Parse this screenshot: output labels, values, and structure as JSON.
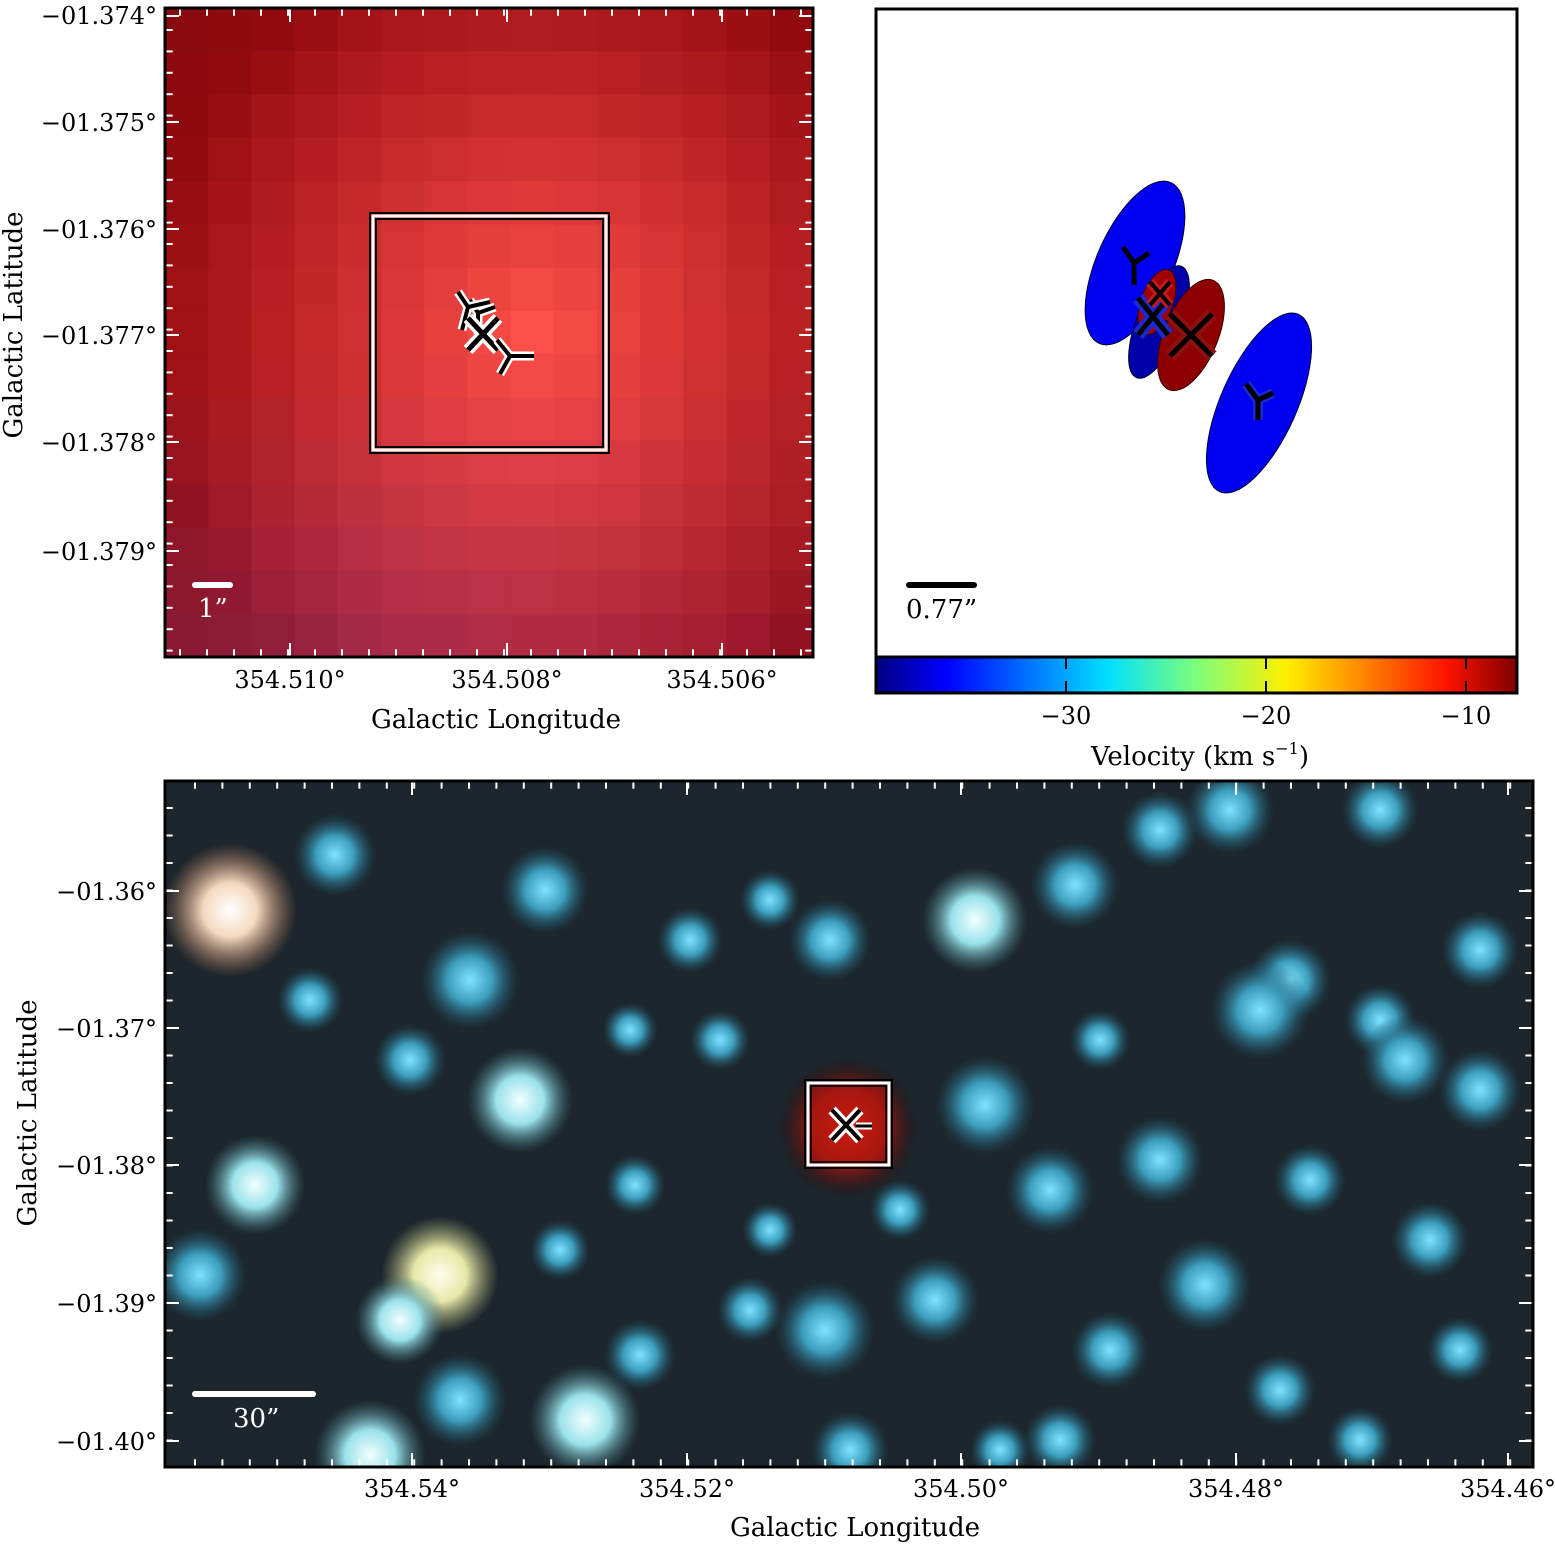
{
  "chart_data": [
    {
      "type": "heatmap",
      "panel": "top-left",
      "xlabel": "Galactic Longitude",
      "ylabel": "Galactic Latitude",
      "xlim": [
        354.5113,
        354.5053
      ],
      "ylim": [
        -1.37998,
        -1.37396
      ],
      "x_ticks": [
        354.51,
        354.508,
        354.506
      ],
      "x_tick_labels": [
        "354.510°",
        "354.508°",
        "354.506°"
      ],
      "y_ticks": [
        -1.374,
        -1.375,
        -1.376,
        -1.377,
        -1.378,
        -1.379
      ],
      "y_tick_labels": [
        "−01.374°",
        "−01.375°",
        "−01.376°",
        "−01.377°",
        "−01.378°",
        "−01.379°"
      ],
      "colormap": "red",
      "inset_box": {
        "l_range": [
          354.5094,
          354.5072
        ],
        "b_range": [
          -1.37588,
          -1.37803
        ]
      },
      "markers": [
        {
          "symbol": "tri_down",
          "l": 354.50805,
          "b": -1.37723
        },
        {
          "symbol": "x",
          "l": 354.5082,
          "b": -1.377
        },
        {
          "symbol": "tri_down",
          "l": 354.50845,
          "b": -1.3767
        }
      ],
      "scale_bar_label": "1”",
      "grid": false
    },
    {
      "type": "scatter",
      "panel": "top-right",
      "scale_bar_label": "0.77”",
      "colorbar": {
        "label": "Velocity (km s",
        "label_exp": "−1",
        "label_close": ")",
        "ticks": [
          -30,
          -20,
          -10
        ],
        "tick_labels": [
          "−30",
          "−20",
          "−10"
        ],
        "range": [
          -39.5,
          -7.5
        ],
        "colormap": "jet"
      },
      "sources": [
        {
          "velocity": -37.5,
          "symbol": "tri_down"
        },
        {
          "velocity": -36.0,
          "symbol": "x"
        },
        {
          "velocity": -9.0,
          "symbol": "x"
        },
        {
          "velocity": -9.0,
          "symbol": "x"
        },
        {
          "velocity": -37.0,
          "symbol": "tri_down"
        }
      ],
      "grid": false
    },
    {
      "type": "heatmap",
      "panel": "bottom",
      "xlabel": "Galactic Longitude",
      "ylabel": "Galactic Latitude",
      "xlim": [
        354.5601,
        354.4597
      ],
      "ylim": [
        -1.402,
        -1.3525
      ],
      "x_ticks": [
        354.54,
        354.52,
        354.5,
        354.48,
        354.46
      ],
      "x_tick_labels": [
        "354.54°",
        "354.52°",
        "354.50°",
        "354.48°",
        "354.46°"
      ],
      "y_ticks": [
        -1.36,
        -1.37,
        -1.38,
        -1.39,
        -1.4
      ],
      "y_tick_labels": [
        "−01.36°",
        "−01.37°",
        "−01.38°",
        "−01.39°",
        "−01.40°"
      ],
      "colormap": "rgb composite",
      "inset_box": {
        "l_range": [
          354.5135,
          354.5073
        ],
        "b_range": [
          -1.376,
          -1.382
        ]
      },
      "scale_bar_label": "30”",
      "grid": false
    }
  ]
}
